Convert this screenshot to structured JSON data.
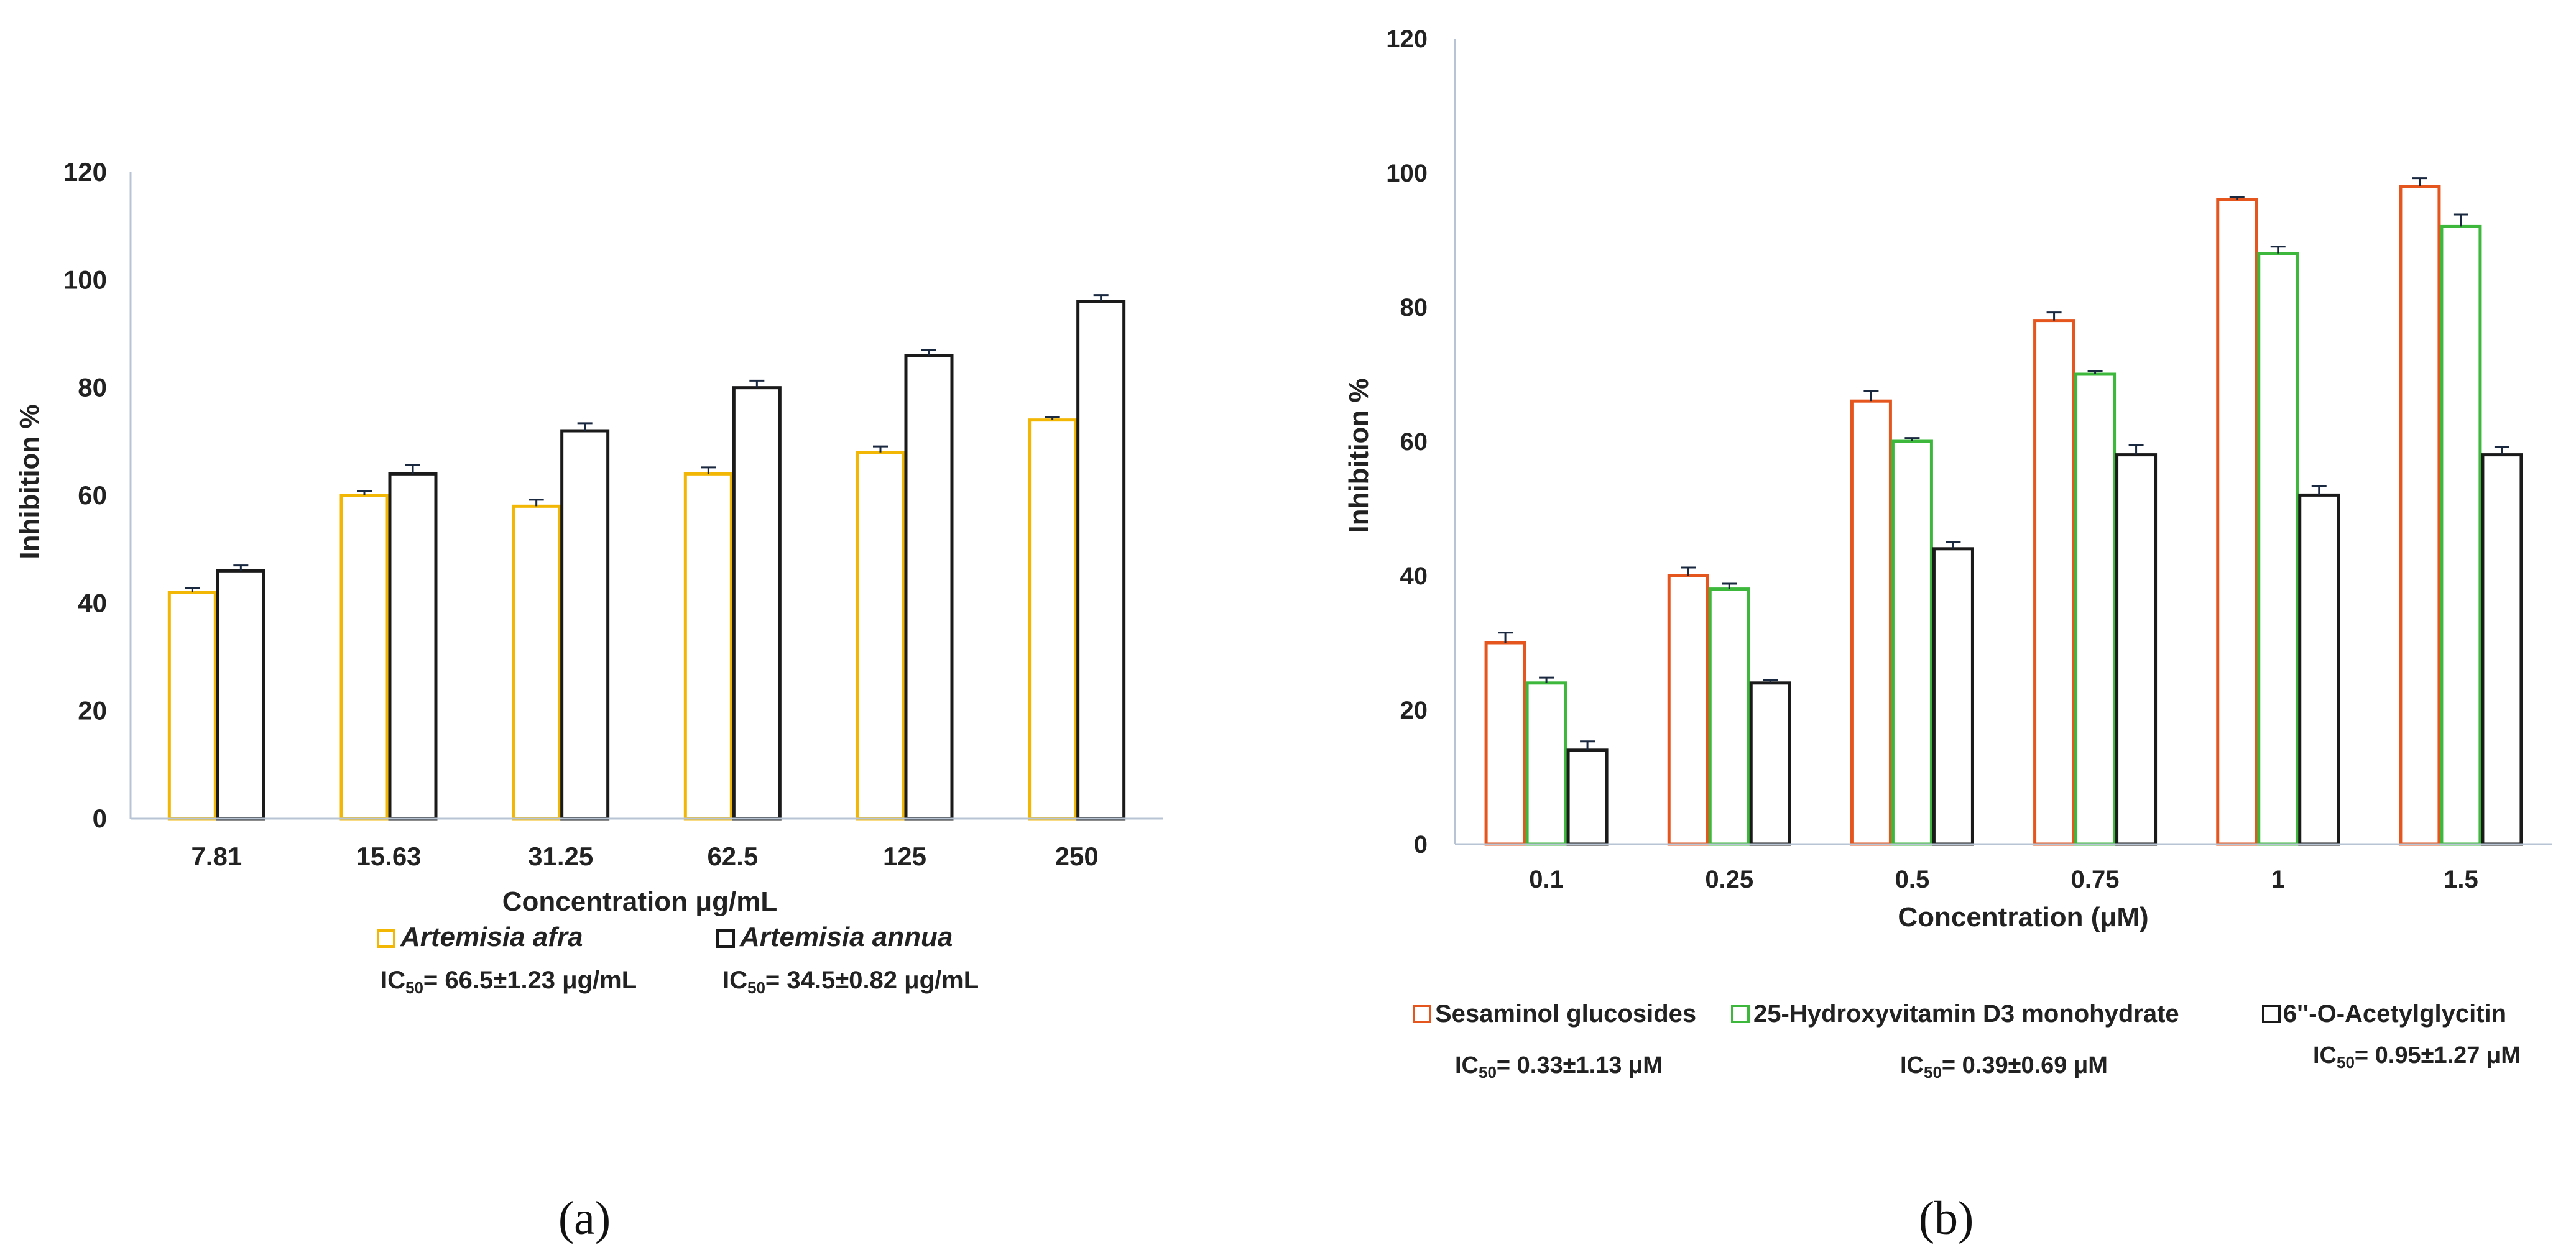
{
  "chart_data": [
    {
      "type": "bar",
      "panel_label": "(a)",
      "categories": [
        "7.81",
        "15.63",
        "31.25",
        "62.5",
        "125",
        "250"
      ],
      "series": [
        {
          "name": "Artemisia afra",
          "color": "#F2B705",
          "values": [
            42,
            60,
            58,
            64,
            68,
            74
          ],
          "errors": [
            0.8,
            0.8,
            1.2,
            1.2,
            1.1,
            0.5
          ]
        },
        {
          "name": "Artemisia annua",
          "color": "#1A1A1A",
          "values": [
            46,
            64,
            72,
            80,
            86,
            96
          ],
          "errors": [
            1.0,
            1.6,
            1.4,
            1.3,
            1.0,
            1.2
          ]
        }
      ],
      "ic50": [
        "IC50= 66.5±1.23 μg/mL",
        "IC50= 34.5±0.82 μg/mL"
      ],
      "xlabel": "Concentration μg/mL",
      "ylabel": "Inhibition %",
      "ylim": [
        0,
        120
      ],
      "yticks": [
        "0",
        "20",
        "40",
        "60",
        "80",
        "100",
        "120"
      ],
      "grid": false,
      "legend_position": "bottom"
    },
    {
      "type": "bar",
      "panel_label": "(b)",
      "categories": [
        "0.1",
        "0.25",
        "0.5",
        "0.75",
        "1",
        "1.5"
      ],
      "series": [
        {
          "name": "Sesaminol glucosides",
          "color": "#E5561E",
          "values": [
            30,
            40,
            66,
            78,
            96,
            98
          ],
          "errors": [
            1.5,
            1.2,
            1.5,
            1.2,
            0.4,
            1.2
          ]
        },
        {
          "name": "25-Hydroxyvitamin D3 monohydrate",
          "color": "#3DB83D",
          "values": [
            24,
            38,
            60,
            70,
            88,
            92
          ],
          "errors": [
            0.8,
            0.8,
            0.5,
            0.5,
            1.0,
            1.8
          ]
        },
        {
          "name": "6''-O-Acetylglycitin",
          "color": "#1A1A1A",
          "values": [
            14,
            24,
            44,
            58,
            52,
            58
          ],
          "errors": [
            1.3,
            0.4,
            1.0,
            1.4,
            1.3,
            1.2
          ]
        }
      ],
      "ic50": [
        "IC50= 0.33±1.13 μM",
        "IC50= 0.39±0.69 μM",
        "IC50= 0.95±1.27 μM"
      ],
      "xlabel": "Concentration (μM)",
      "ylabel": "Inhibition %",
      "ylim": [
        0,
        120
      ],
      "yticks": [
        "0",
        "20",
        "40",
        "60",
        "80",
        "100",
        "120"
      ],
      "grid": false,
      "legend_position": "bottom"
    }
  ]
}
